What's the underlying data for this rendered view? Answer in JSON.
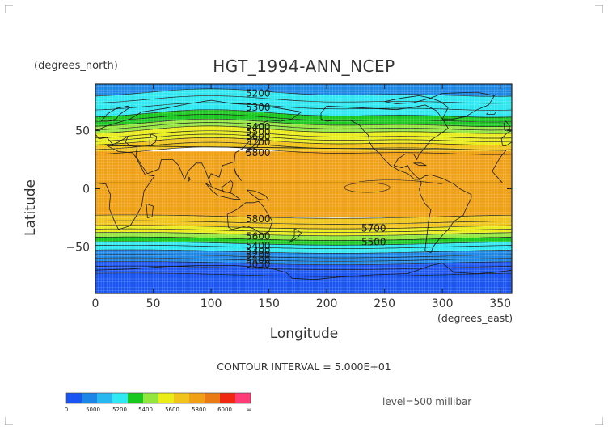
{
  "figure": {
    "title": "HGT_1994-ANN_NCEP",
    "lat_units": "(degrees_north)",
    "lon_units": "(degrees_east)",
    "xlabel": "Longitude",
    "ylabel": "Latitude",
    "contour_interval_text": "CONTOUR INTERVAL = 5.000E+01",
    "level_text": "level=500 millibar"
  },
  "map": {
    "type": "filled-contour-map",
    "projection": "cylindrical-equidistant",
    "xlim": [
      0,
      360
    ],
    "ylim": [
      -90,
      90
    ],
    "x_ticks": [
      0,
      50,
      100,
      150,
      200,
      250,
      300,
      350
    ],
    "x_tick_labels": [
      "0",
      "50",
      "100",
      "150",
      "200",
      "250",
      "300",
      "350"
    ],
    "y_ticks": [
      50,
      0,
      -50
    ],
    "y_tick_labels": [
      "50",
      "0",
      "−50"
    ],
    "grid": true,
    "coastlines": true,
    "contour_line_color": "#111111",
    "contour_labels": [
      {
        "text": "5200",
        "lon": 130,
        "lat": 82
      },
      {
        "text": "5300",
        "lon": 130,
        "lat": 70
      },
      {
        "text": "5400",
        "lon": 130,
        "lat": 53
      },
      {
        "text": "5500",
        "lon": 130,
        "lat": 49
      },
      {
        "text": "5600",
        "lon": 130,
        "lat": 45
      },
      {
        "text": "5700",
        "lon": 130,
        "lat": 40
      },
      {
        "text": "5800",
        "lon": 130,
        "lat": 31
      },
      {
        "text": "5800",
        "lon": 130,
        "lat": -26
      },
      {
        "text": "5700",
        "lon": 230,
        "lat": -34
      },
      {
        "text": "5600",
        "lon": 130,
        "lat": -41
      },
      {
        "text": "5500",
        "lon": 230,
        "lat": -46
      },
      {
        "text": "5400",
        "lon": 130,
        "lat": -49
      },
      {
        "text": "5300",
        "lon": 130,
        "lat": -53
      },
      {
        "text": "5200",
        "lon": 130,
        "lat": -57
      },
      {
        "text": "5100",
        "lon": 130,
        "lat": -61
      },
      {
        "text": "5050",
        "lon": 130,
        "lat": -65
      }
    ]
  },
  "legend": {
    "colors": [
      "#1a55f2",
      "#1b86e6",
      "#26b8ef",
      "#2ee8f2",
      "#19c81e",
      "#92e63c",
      "#eaed18",
      "#f0c41a",
      "#f0a014",
      "#ea7a14",
      "#f02812",
      "#ff3c78"
    ],
    "labels": [
      "0",
      "5000",
      "5200",
      "5400",
      "5600",
      "5800",
      "6000",
      "∞"
    ]
  }
}
